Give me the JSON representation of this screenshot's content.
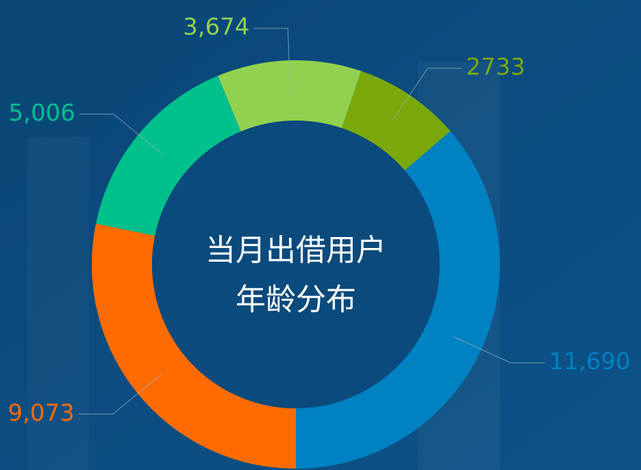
{
  "chart_data": {
    "type": "pie",
    "donut": true,
    "title": [
      "当月出借用户",
      "年龄分布"
    ],
    "values": [
      11690,
      2733,
      3674,
      5006,
      9073
    ],
    "value_labels": [
      "11,690",
      "2733",
      "3,674",
      "5,006",
      "9,073"
    ],
    "colors": [
      "#0081c2",
      "#7aa80a",
      "#92d050",
      "#00c08c",
      "#ff6b00"
    ]
  }
}
